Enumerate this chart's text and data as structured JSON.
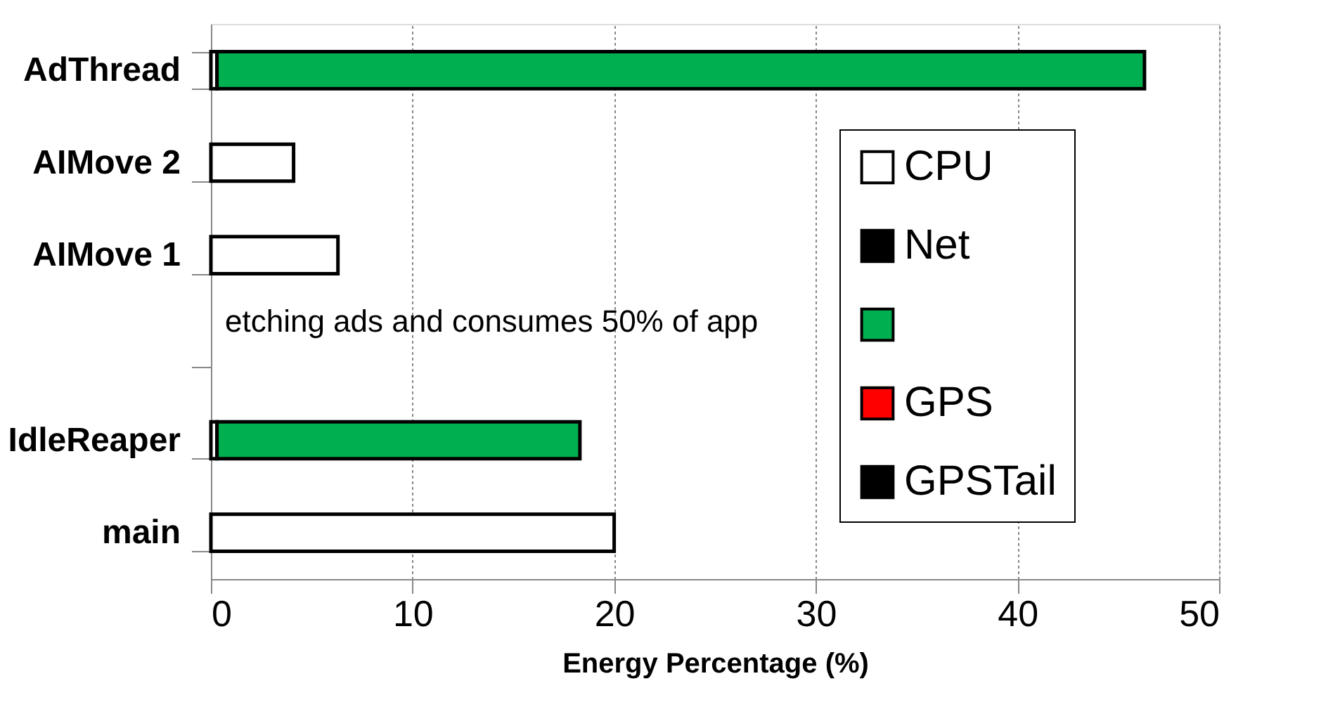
{
  "chart_data": {
    "type": "bar",
    "orientation": "horizontal",
    "stacked": true,
    "categories": [
      "AdThread",
      "AIMove 2",
      "AIMove 1",
      null,
      "IdleReaper",
      "main"
    ],
    "series": [
      {
        "name": "CPU",
        "color": "#ffffff",
        "values": [
          0.3,
          4.1,
          6.3,
          null,
          0.3,
          20.0
        ]
      },
      {
        "name": "Net",
        "color": "#000000",
        "values": [
          null,
          null,
          null,
          null,
          null,
          null
        ]
      },
      {
        "color": "#00b050",
        "values": [
          46.0,
          null,
          null,
          null,
          18.0,
          null
        ]
      },
      {
        "name": "GPS",
        "color": "#ff0000",
        "values": [
          null,
          null,
          null,
          null,
          null,
          null
        ]
      },
      {
        "name": "GPSTail",
        "color": "#000000",
        "values": [
          null,
          null,
          null,
          null,
          null,
          null
        ]
      }
    ],
    "xlabel": "Energy Percentage (%)",
    "xlim": [
      0,
      50
    ],
    "xticks": [
      0,
      10,
      20,
      30,
      40,
      50
    ],
    "grid": "x",
    "legend": "right",
    "annotations": [
      "etching ads and consumes 50% of app"
    ]
  }
}
